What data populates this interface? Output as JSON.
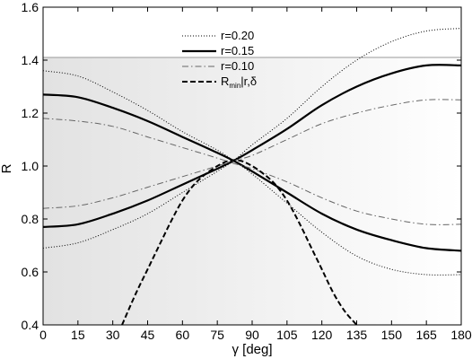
{
  "chart_data": {
    "type": "line",
    "xlabel": "γ [deg]",
    "ylabel": "R",
    "xlim": [
      0,
      180
    ],
    "ylim": [
      0.4,
      1.6
    ],
    "xticks": [
      "0",
      "15",
      "30",
      "45",
      "60",
      "75",
      "90",
      "105",
      "120",
      "135",
      "150",
      "165",
      "180"
    ],
    "yticks": [
      "0.4",
      "0.6",
      "0.8",
      "1.0",
      "1.2",
      "1.4",
      "1.6"
    ],
    "grid": false,
    "legend_position": "top-center",
    "shaded_region": {
      "ymin": 0.4,
      "ymax": 1.41,
      "gradient": "gray at left fading to white at right"
    },
    "series": [
      {
        "name": "r=0.20",
        "style": "dotted",
        "curves": [
          {
            "x": [
              0,
              15,
              30,
              45,
              60,
              75,
              82,
              90,
              105,
              120,
              135,
              150,
              165,
              180
            ],
            "y": [
              0.69,
              0.71,
              0.76,
              0.82,
              0.9,
              0.98,
              1.02,
              1.08,
              1.18,
              1.3,
              1.4,
              1.47,
              1.51,
              1.52
            ]
          },
          {
            "x": [
              0,
              15,
              30,
              45,
              60,
              75,
              82,
              90,
              105,
              120,
              135,
              150,
              165,
              180
            ],
            "y": [
              1.36,
              1.34,
              1.28,
              1.21,
              1.13,
              1.06,
              1.02,
              0.97,
              0.86,
              0.75,
              0.66,
              0.61,
              0.59,
              0.59
            ]
          }
        ]
      },
      {
        "name": "r=0.15",
        "style": "solid",
        "curves": [
          {
            "x": [
              0,
              15,
              30,
              45,
              60,
              75,
              82,
              90,
              105,
              120,
              135,
              150,
              165,
              180
            ],
            "y": [
              0.77,
              0.78,
              0.82,
              0.87,
              0.93,
              0.99,
              1.02,
              1.06,
              1.14,
              1.23,
              1.3,
              1.35,
              1.38,
              1.38
            ]
          },
          {
            "x": [
              0,
              15,
              30,
              45,
              60,
              75,
              82,
              90,
              105,
              120,
              135,
              150,
              165,
              180
            ],
            "y": [
              1.27,
              1.26,
              1.22,
              1.17,
              1.11,
              1.05,
              1.02,
              0.98,
              0.9,
              0.82,
              0.76,
              0.72,
              0.69,
              0.68
            ]
          }
        ]
      },
      {
        "name": "r=0.10",
        "style": "dash-dot",
        "curves": [
          {
            "x": [
              0,
              15,
              30,
              45,
              60,
              75,
              82,
              90,
              105,
              120,
              135,
              150,
              165,
              180
            ],
            "y": [
              0.84,
              0.85,
              0.88,
              0.92,
              0.96,
              1.0,
              1.02,
              1.04,
              1.1,
              1.16,
              1.2,
              1.23,
              1.25,
              1.25
            ]
          },
          {
            "x": [
              0,
              15,
              30,
              45,
              60,
              75,
              82,
              90,
              105,
              120,
              135,
              150,
              165,
              180
            ],
            "y": [
              1.18,
              1.17,
              1.15,
              1.11,
              1.07,
              1.03,
              1.01,
              0.99,
              0.94,
              0.88,
              0.83,
              0.8,
              0.78,
              0.78
            ]
          }
        ]
      },
      {
        "name": "R_min|r,δ",
        "legend_main": "R",
        "legend_sub": "min",
        "legend_tail": "|r,δ",
        "style": "dashed",
        "curves": [
          {
            "x": [
              34,
              40,
              45,
              50,
              55,
              60,
              65,
              70,
              75,
              80,
              85,
              90,
              95,
              100,
              105,
              110,
              115,
              120,
              125,
              130,
              135
            ],
            "y": [
              0.4,
              0.52,
              0.61,
              0.7,
              0.79,
              0.87,
              0.93,
              0.97,
              1.0,
              1.02,
              1.02,
              1.0,
              0.97,
              0.93,
              0.87,
              0.79,
              0.7,
              0.61,
              0.52,
              0.45,
              0.4
            ]
          }
        ]
      }
    ]
  }
}
